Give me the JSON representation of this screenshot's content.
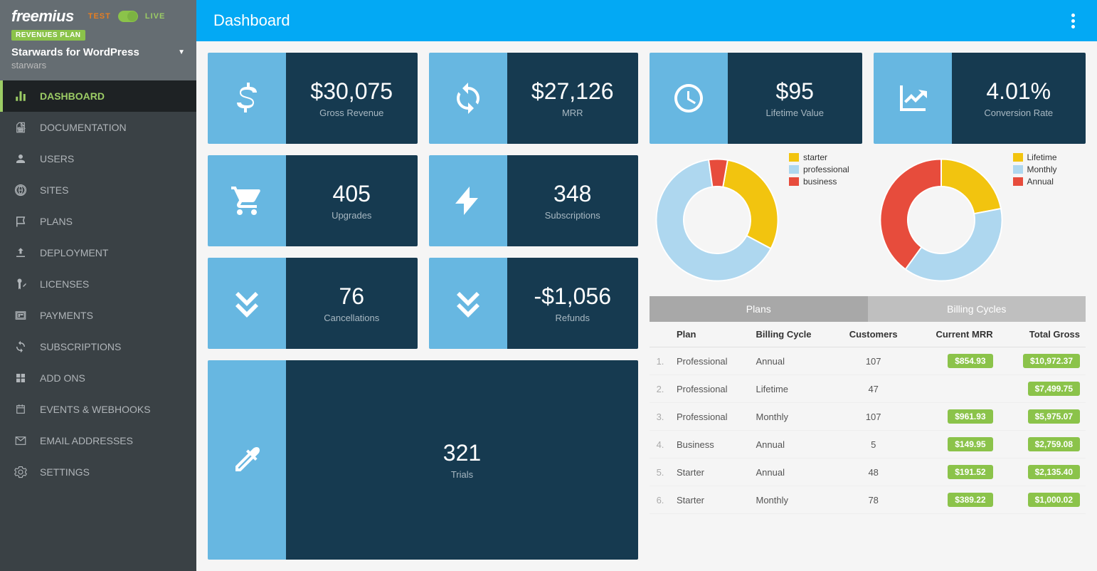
{
  "brand": "freemius",
  "env": {
    "test": "TEST",
    "live": "LIVE"
  },
  "plan_badge": "REVENUES PLAN",
  "product": {
    "name": "Starwards for WordPress",
    "slug": "starwars"
  },
  "nav": [
    {
      "key": "dashboard",
      "label": "DASHBOARD",
      "active": true
    },
    {
      "key": "documentation",
      "label": "DOCUMENTATION"
    },
    {
      "key": "users",
      "label": "USERS"
    },
    {
      "key": "sites",
      "label": "SITES"
    },
    {
      "key": "plans",
      "label": "PLANS"
    },
    {
      "key": "deployment",
      "label": "DEPLOYMENT"
    },
    {
      "key": "licenses",
      "label": "LICENSES"
    },
    {
      "key": "payments",
      "label": "PAYMENTS"
    },
    {
      "key": "subscriptions",
      "label": "SUBSCRIPTIONS"
    },
    {
      "key": "addons",
      "label": "ADD ONS"
    },
    {
      "key": "events",
      "label": "EVENTS & WEBHOOKS"
    },
    {
      "key": "email",
      "label": "EMAIL ADDRESSES"
    },
    {
      "key": "settings",
      "label": "SETTINGS"
    }
  ],
  "page_title": "Dashboard",
  "stats": {
    "gross_revenue": {
      "value": "$30,075",
      "label": "Gross Revenue"
    },
    "mrr": {
      "value": "$27,126",
      "label": "MRR"
    },
    "lifetime_value": {
      "value": "$95",
      "label": "Lifetime Value"
    },
    "conversion_rate": {
      "value": "4.01%",
      "label": "Conversion Rate"
    },
    "upgrades": {
      "value": "405",
      "label": "Upgrades"
    },
    "subscriptions": {
      "value": "348",
      "label": "Subscriptions"
    },
    "cancellations": {
      "value": "76",
      "label": "Cancellations"
    },
    "refunds": {
      "value": "-$1,056",
      "label": "Refunds"
    },
    "trials": {
      "value": "321",
      "label": "Trials"
    }
  },
  "colors": {
    "accent_light": "#67b7e1",
    "accent_dark": "#163a50",
    "topbar": "#03A9F4",
    "sidebar": "#3a4145",
    "active": "#9CCC65",
    "pill": "#8BC34A",
    "yellow": "#f2c40f",
    "blue": "#aed7ef",
    "red": "#e74c3c"
  },
  "plans_chart": {
    "type": "donut",
    "inner_radius": 0.55,
    "background": "#ffffff",
    "segments": [
      {
        "label": "starter",
        "value": 30,
        "color": "#f2c40f"
      },
      {
        "label": "professional",
        "value": 65,
        "color": "#aed7ef"
      },
      {
        "label": "business",
        "value": 5,
        "color": "#e74c3c"
      }
    ],
    "start_angle_deg": -80
  },
  "billing_chart": {
    "type": "donut",
    "inner_radius": 0.55,
    "background": "#ffffff",
    "segments": [
      {
        "label": "Lifetime",
        "value": 22,
        "color": "#f2c40f"
      },
      {
        "label": "Monthly",
        "value": 38,
        "color": "#aed7ef"
      },
      {
        "label": "Annual",
        "value": 40,
        "color": "#e74c3c"
      }
    ],
    "start_angle_deg": -90
  },
  "tabs": {
    "plans": "Plans",
    "billing_cycles": "Billing Cycles"
  },
  "table": {
    "columns": [
      "Plan",
      "Billing Cycle",
      "Customers",
      "Current MRR",
      "Total Gross"
    ],
    "rows": [
      {
        "n": "1.",
        "plan": "Professional",
        "cycle": "Annual",
        "customers": "107",
        "mrr": "$854.93",
        "gross": "$10,972.37"
      },
      {
        "n": "2.",
        "plan": "Professional",
        "cycle": "Lifetime",
        "customers": "47",
        "mrr": "",
        "gross": "$7,499.75"
      },
      {
        "n": "3.",
        "plan": "Professional",
        "cycle": "Monthly",
        "customers": "107",
        "mrr": "$961.93",
        "gross": "$5,975.07"
      },
      {
        "n": "4.",
        "plan": "Business",
        "cycle": "Annual",
        "customers": "5",
        "mrr": "$149.95",
        "gross": "$2,759.08"
      },
      {
        "n": "5.",
        "plan": "Starter",
        "cycle": "Annual",
        "customers": "48",
        "mrr": "$191.52",
        "gross": "$2,135.40"
      },
      {
        "n": "6.",
        "plan": "Starter",
        "cycle": "Monthly",
        "customers": "78",
        "mrr": "$389.22",
        "gross": "$1,000.02"
      }
    ]
  }
}
